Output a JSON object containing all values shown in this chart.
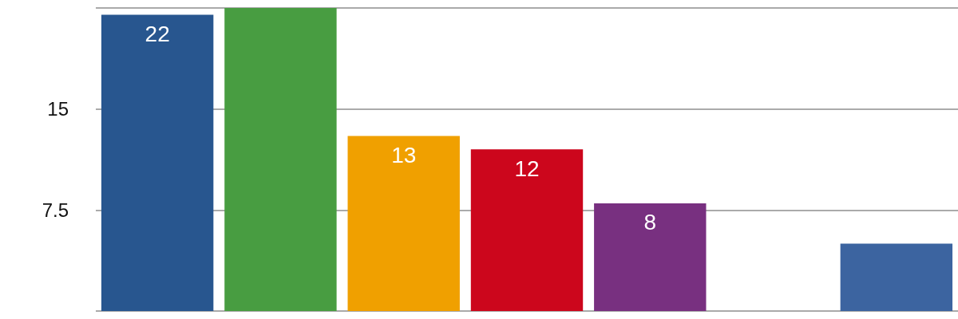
{
  "chart_data": {
    "type": "bar",
    "categories": [
      null,
      null,
      null,
      null,
      null,
      null,
      null
    ],
    "values": [
      22,
      22.5,
      13,
      12,
      8,
      null,
      5
    ],
    "colors": [
      "#28568f",
      "#489d41",
      "#f0a000",
      "#cc061c",
      "#783080",
      "#3c64a0",
      "#3c64a0"
    ],
    "value_labels": [
      "22",
      null,
      "13",
      "12",
      "8",
      null,
      null
    ],
    "ylim": [
      0,
      22.5
    ],
    "yticks": [
      {
        "value": 0,
        "label": null
      },
      7.5,
      15,
      {
        "value": 22.5,
        "label": null
      }
    ],
    "grid": "y"
  }
}
